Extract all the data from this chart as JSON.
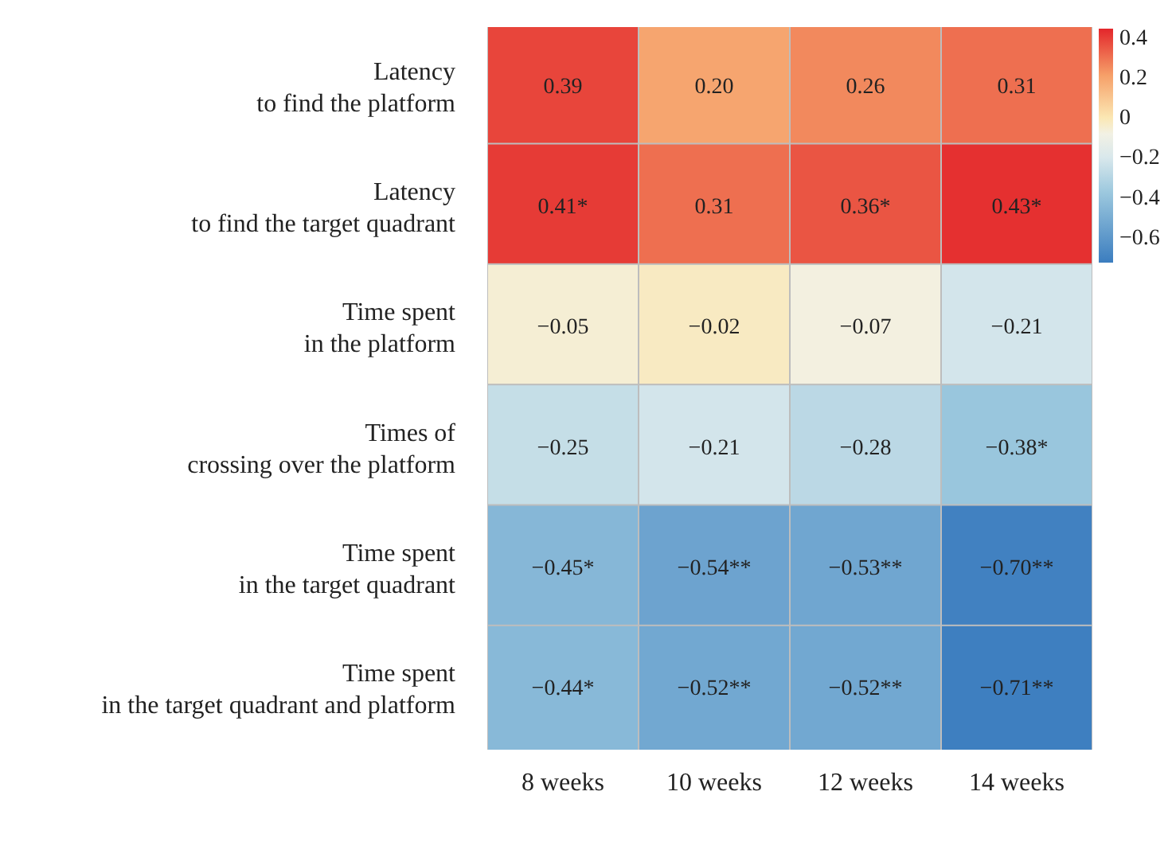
{
  "chart_data": {
    "type": "heatmap",
    "categories": [
      "8 weeks",
      "10 weeks",
      "12 weeks",
      "14 weeks"
    ],
    "y_categories": [
      "Latency\nto find the platform",
      "Latency\nto find the target quadrant",
      "Time spent\nin the platform",
      "Times of\ncrossing over the platform",
      "Time spent\nin the target quadrant",
      "Time spent\nin the target quadrant and platform"
    ],
    "cells": [
      [
        0.39,
        0.2,
        0.26,
        0.31
      ],
      [
        0.41,
        0.31,
        0.36,
        0.43
      ],
      [
        -0.05,
        -0.02,
        -0.07,
        -0.21
      ],
      [
        -0.25,
        -0.21,
        -0.28,
        -0.38
      ],
      [
        -0.45,
        -0.54,
        -0.53,
        -0.7
      ],
      [
        -0.44,
        -0.52,
        -0.52,
        -0.71
      ]
    ],
    "cell_labels": [
      [
        "0.39",
        "0.20",
        "0.26",
        "0.31"
      ],
      [
        "0.41*",
        "0.31",
        "0.36*",
        "0.43*"
      ],
      [
        "−0.05",
        "−0.02",
        "−0.07",
        "−0.21"
      ],
      [
        "−0.25",
        "−0.21",
        "−0.28",
        "−0.38*"
      ],
      [
        "−0.45*",
        "−0.54**",
        "−0.53**",
        "−0.70**"
      ],
      [
        "−0.44*",
        "−0.52**",
        "−0.52**",
        "−0.71**"
      ]
    ],
    "clim": [
      -0.72,
      0.45
    ],
    "cticks": [
      {
        "value": 0.4,
        "label": "0.4"
      },
      {
        "value": 0.2,
        "label": "0.2"
      },
      {
        "value": 0,
        "label": "0"
      },
      {
        "value": -0.2,
        "label": "−0.2"
      },
      {
        "value": -0.4,
        "label": "−0.4"
      },
      {
        "value": -0.6,
        "label": "−0.6"
      }
    ]
  }
}
